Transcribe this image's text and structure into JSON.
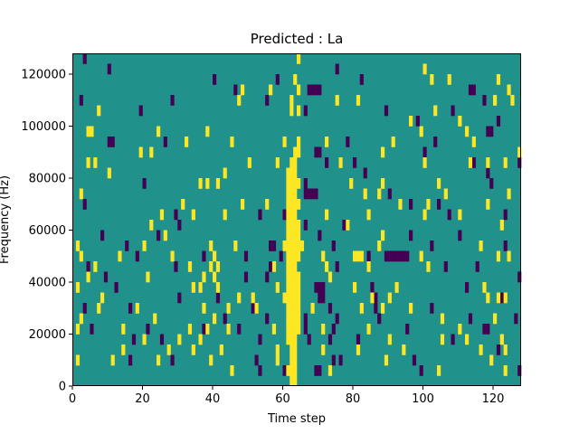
{
  "chart_data": {
    "type": "heatmap",
    "title": "Predicted : La",
    "xlabel": "Time step",
    "ylabel": "Frequency (Hz)",
    "xlim": [
      0,
      128
    ],
    "ylim": [
      0,
      128000
    ],
    "x_ticks": [
      0,
      20,
      40,
      60,
      80,
      100,
      120
    ],
    "x_tick_labels": [
      "0",
      "20",
      "40",
      "60",
      "80",
      "100",
      "120"
    ],
    "y_ticks": [
      0,
      20000,
      40000,
      60000,
      80000,
      100000,
      120000
    ],
    "y_tick_labels": [
      "0",
      "20000",
      "40000",
      "60000",
      "80000",
      "100000",
      "120000"
    ],
    "grid": false,
    "colormap": "viridis",
    "colors": {
      "low": "#440154",
      "mid": "#21918c",
      "high": "#fde725",
      "background": "#21918c"
    },
    "row_step_hz": 4000,
    "low_cells": [
      [
        3,
        124000
      ],
      [
        10,
        120000
      ],
      [
        40,
        116000
      ],
      [
        46,
        112000
      ],
      [
        58,
        116000
      ],
      [
        75,
        120000
      ],
      [
        82,
        116000
      ],
      [
        2,
        108000
      ],
      [
        28,
        108000
      ],
      [
        55,
        108000
      ],
      [
        67,
        112000
      ],
      [
        68,
        112000
      ],
      [
        69,
        112000
      ],
      [
        70,
        112000
      ],
      [
        114,
        112000
      ],
      [
        117,
        108000
      ],
      [
        113,
        112000
      ],
      [
        19,
        104000
      ],
      [
        66,
        104000
      ],
      [
        89,
        104000
      ],
      [
        98,
        100000
      ],
      [
        108,
        104000
      ],
      [
        121,
        100000
      ],
      [
        10,
        92000
      ],
      [
        11,
        92000
      ],
      [
        26,
        92000
      ],
      [
        69,
        88000
      ],
      [
        70,
        88000
      ],
      [
        78,
        92000
      ],
      [
        103,
        92000
      ],
      [
        118,
        96000
      ],
      [
        119,
        96000
      ],
      [
        72,
        84000
      ],
      [
        80,
        84000
      ],
      [
        100,
        88000
      ],
      [
        114,
        84000
      ],
      [
        127,
        84000
      ],
      [
        20,
        76000
      ],
      [
        66,
        72000
      ],
      [
        67,
        72000
      ],
      [
        68,
        72000
      ],
      [
        69,
        72000
      ],
      [
        66,
        76000
      ],
      [
        83,
        80000
      ],
      [
        90,
        72000
      ],
      [
        104,
        68000
      ],
      [
        118,
        80000
      ],
      [
        119,
        76000
      ],
      [
        3,
        68000
      ],
      [
        29,
        64000
      ],
      [
        53,
        64000
      ],
      [
        60,
        64000
      ],
      [
        66,
        60000
      ],
      [
        77,
        60000
      ],
      [
        96,
        68000
      ],
      [
        107,
        64000
      ],
      [
        123,
        64000
      ],
      [
        8,
        56000
      ],
      [
        15,
        52000
      ],
      [
        24,
        56000
      ],
      [
        30,
        60000
      ],
      [
        56,
        52000
      ],
      [
        57,
        52000
      ],
      [
        59,
        48000
      ],
      [
        70,
        56000
      ],
      [
        74,
        52000
      ],
      [
        89,
        48000
      ],
      [
        90,
        48000
      ],
      [
        91,
        48000
      ],
      [
        92,
        48000
      ],
      [
        93,
        48000
      ],
      [
        94,
        48000
      ],
      [
        95,
        48000
      ],
      [
        96,
        56000
      ],
      [
        102,
        52000
      ],
      [
        110,
        56000
      ],
      [
        123,
        52000
      ],
      [
        4,
        44000
      ],
      [
        9,
        40000
      ],
      [
        18,
        48000
      ],
      [
        29,
        44000
      ],
      [
        37,
        48000
      ],
      [
        49,
        48000
      ],
      [
        56,
        44000
      ],
      [
        75,
        44000
      ],
      [
        84,
        48000
      ],
      [
        106,
        44000
      ],
      [
        115,
        44000
      ],
      [
        127,
        40000
      ],
      [
        12,
        36000
      ],
      [
        30,
        32000
      ],
      [
        49,
        40000
      ],
      [
        55,
        40000
      ],
      [
        69,
        36000
      ],
      [
        70,
        36000
      ],
      [
        71,
        36000
      ],
      [
        70,
        32000
      ],
      [
        71,
        32000
      ],
      [
        85,
        36000
      ],
      [
        86,
        32000
      ],
      [
        112,
        36000
      ],
      [
        122,
        32000
      ],
      [
        3,
        28000
      ],
      [
        16,
        28000
      ],
      [
        41,
        32000
      ],
      [
        43,
        24000
      ],
      [
        51,
        28000
      ],
      [
        55,
        24000
      ],
      [
        66,
        24000
      ],
      [
        73,
        28000
      ],
      [
        75,
        24000
      ],
      [
        86,
        28000
      ],
      [
        87,
        24000
      ],
      [
        102,
        28000
      ],
      [
        113,
        24000
      ],
      [
        118,
        20000
      ],
      [
        126,
        24000
      ],
      [
        5,
        20000
      ],
      [
        17,
        16000
      ],
      [
        21,
        20000
      ],
      [
        25,
        16000
      ],
      [
        37,
        20000
      ],
      [
        47,
        20000
      ],
      [
        53,
        16000
      ],
      [
        66,
        20000
      ],
      [
        67,
        16000
      ],
      [
        73,
        16000
      ],
      [
        74,
        20000
      ],
      [
        81,
        16000
      ],
      [
        95,
        20000
      ],
      [
        108,
        16000
      ],
      [
        117,
        20000
      ],
      [
        16,
        8000
      ],
      [
        28,
        8000
      ],
      [
        52,
        8000
      ],
      [
        53,
        4000
      ],
      [
        60,
        4000
      ],
      [
        69,
        4000
      ],
      [
        70,
        4000
      ],
      [
        74,
        8000
      ],
      [
        76,
        8000
      ],
      [
        97,
        8000
      ],
      [
        99,
        4000
      ],
      [
        121,
        12000
      ],
      [
        127,
        4000
      ]
    ],
    "high_cells": [
      [
        62,
        0
      ],
      [
        63,
        0
      ],
      [
        61,
        4000
      ],
      [
        62,
        4000
      ],
      [
        63,
        4000
      ],
      [
        62,
        8000
      ],
      [
        63,
        8000
      ],
      [
        62,
        12000
      ],
      [
        61,
        16000
      ],
      [
        62,
        16000
      ],
      [
        63,
        16000
      ],
      [
        61,
        20000
      ],
      [
        62,
        20000
      ],
      [
        63,
        20000
      ],
      [
        64,
        20000
      ],
      [
        61,
        24000
      ],
      [
        62,
        24000
      ],
      [
        63,
        24000
      ],
      [
        64,
        24000
      ],
      [
        61,
        28000
      ],
      [
        62,
        28000
      ],
      [
        63,
        28000
      ],
      [
        64,
        28000
      ],
      [
        60,
        32000
      ],
      [
        61,
        32000
      ],
      [
        62,
        32000
      ],
      [
        63,
        32000
      ],
      [
        64,
        32000
      ],
      [
        61,
        36000
      ],
      [
        62,
        36000
      ],
      [
        63,
        36000
      ],
      [
        64,
        36000
      ],
      [
        61,
        40000
      ],
      [
        62,
        40000
      ],
      [
        63,
        40000
      ],
      [
        64,
        40000
      ],
      [
        61,
        44000
      ],
      [
        62,
        44000
      ],
      [
        63,
        44000
      ],
      [
        61,
        48000
      ],
      [
        62,
        48000
      ],
      [
        63,
        48000
      ],
      [
        64,
        48000
      ],
      [
        60,
        52000
      ],
      [
        61,
        52000
      ],
      [
        62,
        52000
      ],
      [
        63,
        52000
      ],
      [
        64,
        52000
      ],
      [
        65,
        52000
      ],
      [
        61,
        56000
      ],
      [
        62,
        56000
      ],
      [
        63,
        56000
      ],
      [
        64,
        56000
      ],
      [
        61,
        60000
      ],
      [
        62,
        60000
      ],
      [
        63,
        60000
      ],
      [
        64,
        60000
      ],
      [
        61,
        64000
      ],
      [
        62,
        64000
      ],
      [
        63,
        64000
      ],
      [
        61,
        68000
      ],
      [
        62,
        68000
      ],
      [
        63,
        68000
      ],
      [
        64,
        68000
      ],
      [
        61,
        72000
      ],
      [
        62,
        72000
      ],
      [
        63,
        72000
      ],
      [
        61,
        76000
      ],
      [
        62,
        76000
      ],
      [
        63,
        76000
      ],
      [
        64,
        76000
      ],
      [
        61,
        80000
      ],
      [
        62,
        80000
      ],
      [
        63,
        80000
      ],
      [
        62,
        84000
      ],
      [
        63,
        84000
      ],
      [
        63,
        88000
      ],
      [
        64,
        88000
      ],
      [
        64,
        92000
      ],
      [
        62,
        104000
      ],
      [
        62,
        108000
      ],
      [
        64,
        104000
      ],
      [
        64,
        124000
      ],
      [
        60,
        92000
      ],
      [
        58,
        84000
      ],
      [
        4,
        96000
      ],
      [
        7,
        104000
      ],
      [
        5,
        96000
      ],
      [
        24,
        96000
      ],
      [
        38,
        96000
      ],
      [
        45,
        92000
      ],
      [
        47,
        108000
      ],
      [
        48,
        112000
      ],
      [
        50,
        84000
      ],
      [
        56,
        112000
      ],
      [
        63,
        116000
      ],
      [
        64,
        112000
      ],
      [
        72,
        92000
      ],
      [
        75,
        108000
      ],
      [
        81,
        108000
      ],
      [
        88,
        88000
      ],
      [
        91,
        92000
      ],
      [
        96,
        100000
      ],
      [
        99,
        96000
      ],
      [
        103,
        104000
      ],
      [
        107,
        116000
      ],
      [
        100,
        120000
      ],
      [
        102,
        116000
      ],
      [
        110,
        100000
      ],
      [
        112,
        96000
      ],
      [
        114,
        92000
      ],
      [
        120,
        108000
      ],
      [
        121,
        116000
      ],
      [
        124,
        112000
      ],
      [
        125,
        108000
      ],
      [
        127,
        88000
      ],
      [
        2,
        72000
      ],
      [
        4,
        84000
      ],
      [
        6,
        84000
      ],
      [
        10,
        80000
      ],
      [
        19,
        88000
      ],
      [
        22,
        88000
      ],
      [
        32,
        92000
      ],
      [
        36,
        76000
      ],
      [
        38,
        76000
      ],
      [
        41,
        76000
      ],
      [
        43,
        80000
      ],
      [
        76,
        84000
      ],
      [
        79,
        76000
      ],
      [
        83,
        72000
      ],
      [
        88,
        76000
      ],
      [
        100,
        84000
      ],
      [
        104,
        76000
      ],
      [
        106,
        72000
      ],
      [
        113,
        84000
      ],
      [
        118,
        84000
      ],
      [
        123,
        84000
      ],
      [
        124,
        72000
      ],
      [
        22,
        60000
      ],
      [
        25,
        64000
      ],
      [
        31,
        68000
      ],
      [
        34,
        64000
      ],
      [
        43,
        64000
      ],
      [
        48,
        68000
      ],
      [
        55,
        68000
      ],
      [
        64,
        52000
      ],
      [
        72,
        64000
      ],
      [
        78,
        60000
      ],
      [
        84,
        64000
      ],
      [
        87,
        72000
      ],
      [
        93,
        68000
      ],
      [
        100,
        64000
      ],
      [
        101,
        68000
      ],
      [
        110,
        64000
      ],
      [
        118,
        68000
      ],
      [
        122,
        60000
      ],
      [
        1,
        52000
      ],
      [
        2,
        48000
      ],
      [
        6,
        44000
      ],
      [
        13,
        48000
      ],
      [
        20,
        52000
      ],
      [
        26,
        56000
      ],
      [
        28,
        48000
      ],
      [
        39,
        52000
      ],
      [
        40,
        48000
      ],
      [
        33,
        44000
      ],
      [
        41,
        44000
      ],
      [
        46,
        52000
      ],
      [
        57,
        44000
      ],
      [
        71,
        48000
      ],
      [
        72,
        44000
      ],
      [
        80,
        48000
      ],
      [
        81,
        48000
      ],
      [
        82,
        48000
      ],
      [
        84,
        44000
      ],
      [
        87,
        52000
      ],
      [
        88,
        56000
      ],
      [
        99,
        48000
      ],
      [
        101,
        44000
      ],
      [
        116,
        52000
      ],
      [
        121,
        48000
      ],
      [
        124,
        48000
      ],
      [
        1,
        36000
      ],
      [
        4,
        40000
      ],
      [
        8,
        32000
      ],
      [
        21,
        40000
      ],
      [
        34,
        36000
      ],
      [
        37,
        40000
      ],
      [
        39,
        44000
      ],
      [
        40,
        40000
      ],
      [
        36,
        36000
      ],
      [
        41,
        36000
      ],
      [
        51,
        32000
      ],
      [
        58,
        36000
      ],
      [
        73,
        40000
      ],
      [
        80,
        36000
      ],
      [
        85,
        32000
      ],
      [
        90,
        32000
      ],
      [
        92,
        36000
      ],
      [
        117,
        36000
      ],
      [
        121,
        32000
      ],
      [
        123,
        32000
      ],
      [
        2,
        24000
      ],
      [
        7,
        28000
      ],
      [
        18,
        28000
      ],
      [
        23,
        24000
      ],
      [
        37,
        28000
      ],
      [
        40,
        24000
      ],
      [
        44,
        28000
      ],
      [
        47,
        32000
      ],
      [
        52,
        28000
      ],
      [
        68,
        28000
      ],
      [
        82,
        28000
      ],
      [
        88,
        28000
      ],
      [
        96,
        28000
      ],
      [
        105,
        24000
      ],
      [
        110,
        20000
      ],
      [
        120,
        24000
      ],
      [
        118,
        32000
      ],
      [
        1,
        20000
      ],
      [
        14,
        20000
      ],
      [
        20,
        16000
      ],
      [
        30,
        16000
      ],
      [
        33,
        20000
      ],
      [
        36,
        16000
      ],
      [
        38,
        20000
      ],
      [
        44,
        20000
      ],
      [
        57,
        20000
      ],
      [
        71,
        20000
      ],
      [
        84,
        20000
      ],
      [
        90,
        16000
      ],
      [
        105,
        16000
      ],
      [
        112,
        16000
      ],
      [
        122,
        16000
      ],
      [
        14,
        12000
      ],
      [
        27,
        12000
      ],
      [
        34,
        12000
      ],
      [
        42,
        12000
      ],
      [
        58,
        12000
      ],
      [
        63,
        12000
      ],
      [
        71,
        12000
      ],
      [
        81,
        12000
      ],
      [
        94,
        12000
      ],
      [
        116,
        12000
      ],
      [
        123,
        12000
      ],
      [
        1,
        8000
      ],
      [
        11,
        8000
      ],
      [
        24,
        8000
      ],
      [
        39,
        8000
      ],
      [
        45,
        4000
      ],
      [
        58,
        8000
      ],
      [
        73,
        4000
      ],
      [
        89,
        8000
      ],
      [
        104,
        4000
      ],
      [
        119,
        8000
      ],
      [
        123,
        4000
      ]
    ]
  }
}
